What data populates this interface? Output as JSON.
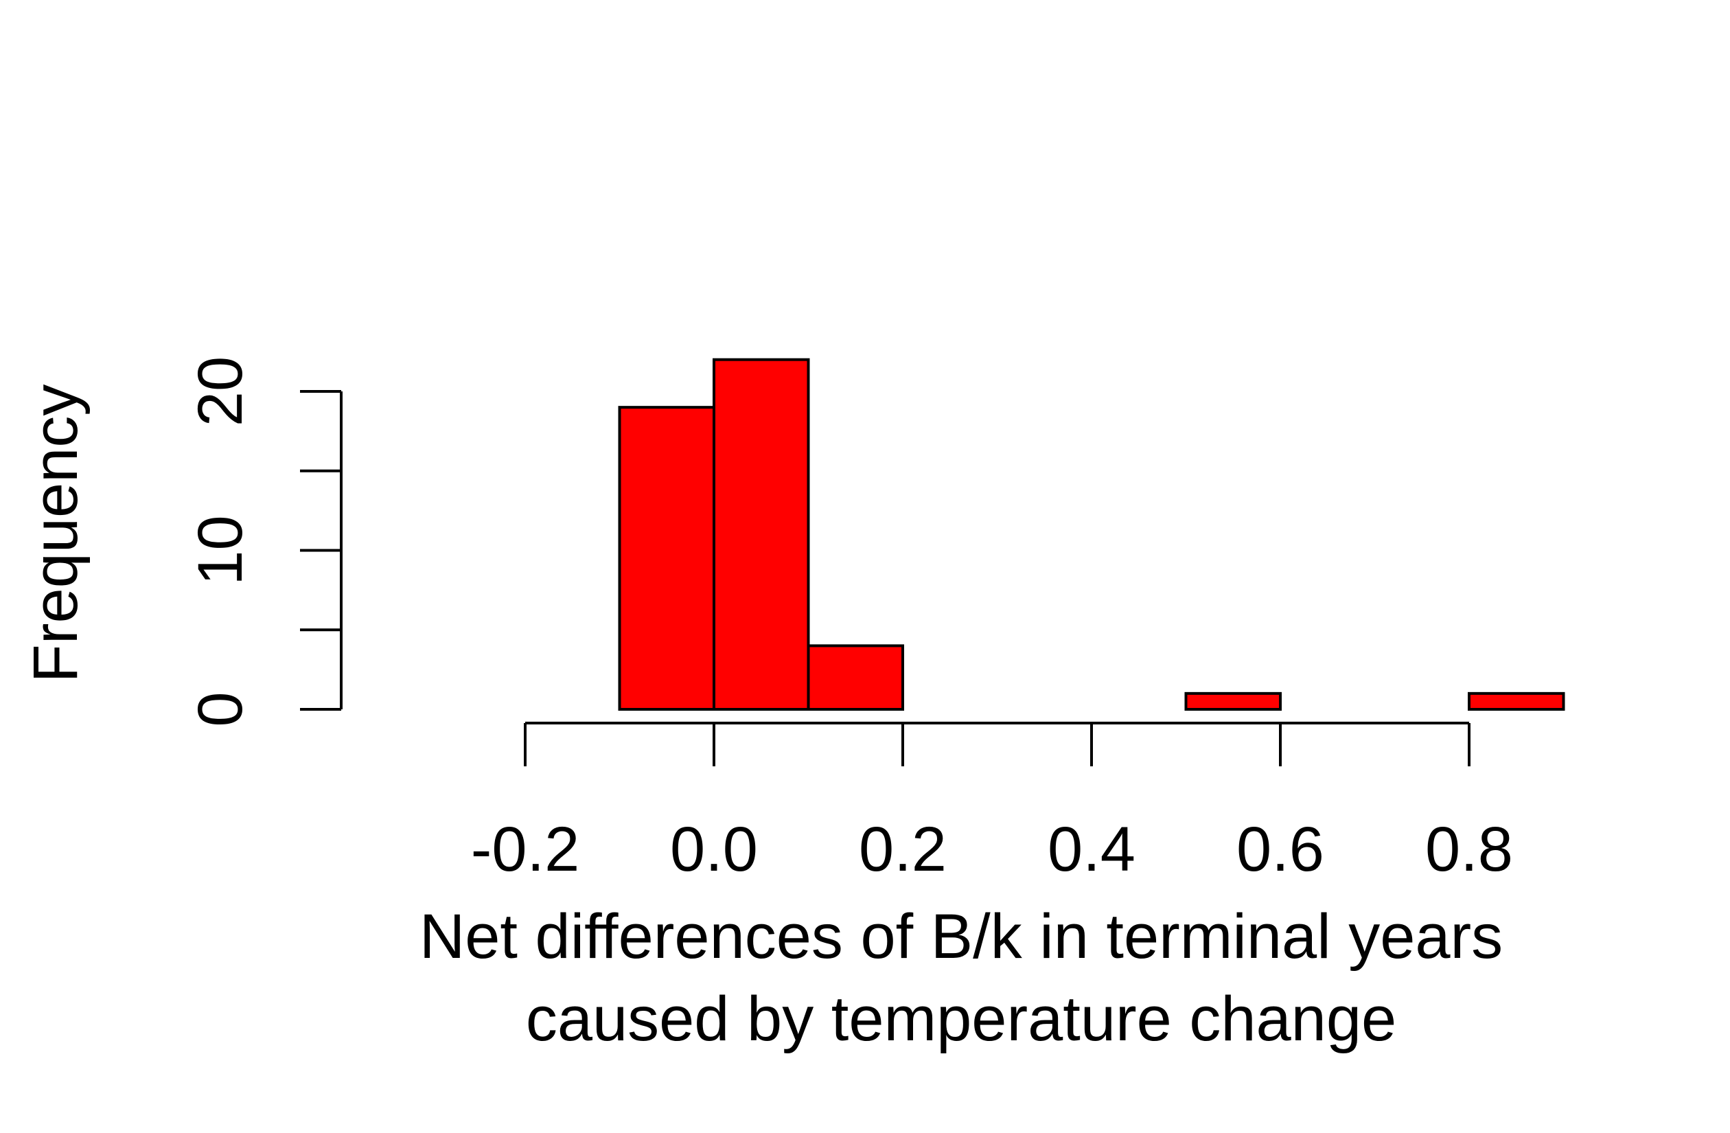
{
  "chart_data": {
    "type": "bar",
    "subtype": "histogram",
    "bins": [
      {
        "x0": -0.1,
        "x1": 0.0,
        "count": 19
      },
      {
        "x0": 0.0,
        "x1": 0.1,
        "count": 22
      },
      {
        "x0": 0.1,
        "x1": 0.2,
        "count": 4
      },
      {
        "x0": 0.2,
        "x1": 0.3,
        "count": 0
      },
      {
        "x0": 0.3,
        "x1": 0.4,
        "count": 0
      },
      {
        "x0": 0.4,
        "x1": 0.5,
        "count": 0
      },
      {
        "x0": 0.5,
        "x1": 0.6,
        "count": 1
      },
      {
        "x0": 0.6,
        "x1": 0.7,
        "count": 0
      },
      {
        "x0": 0.7,
        "x1": 0.8,
        "count": 0
      },
      {
        "x0": 0.8,
        "x1": 0.9,
        "count": 1
      }
    ],
    "bar_color": "#ff0000",
    "xlabel_line1": "Net differences of B/k in terminal years",
    "xlabel_line2": "caused by temperature change",
    "ylabel": "Frequency",
    "x_ticks": [
      -0.2,
      0.0,
      0.2,
      0.4,
      0.6,
      0.8
    ],
    "x_tick_labels": [
      "-0.2",
      "0.0",
      "0.2",
      "0.4",
      "0.6",
      "0.8"
    ],
    "y_ticks": [
      0,
      5,
      10,
      15,
      20
    ],
    "y_tick_labels": [
      "0",
      "",
      "10",
      "",
      "20"
    ],
    "xlim": [
      -0.2,
      0.8
    ],
    "ylim": [
      0,
      20
    ],
    "grid": false
  }
}
